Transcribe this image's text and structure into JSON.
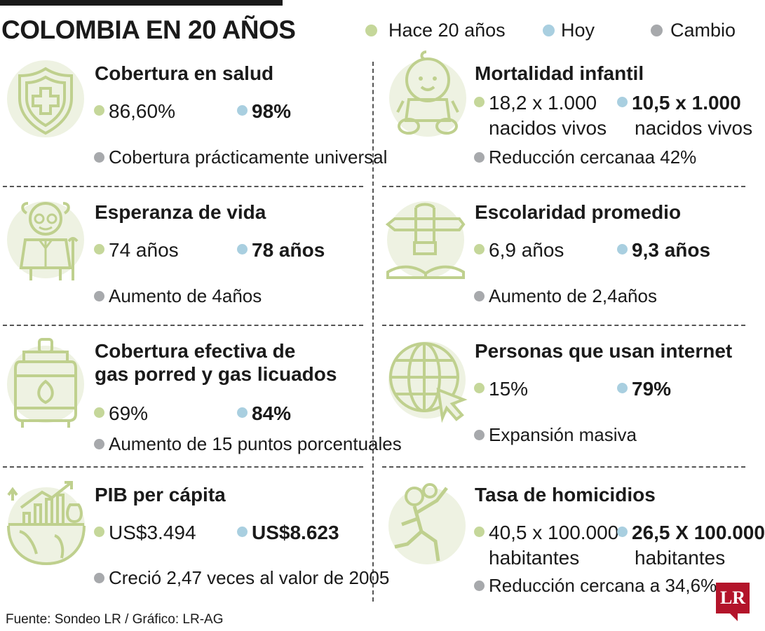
{
  "title": "COLOMBIA EN 20 AÑOS",
  "colors": {
    "before": "#c5d79a",
    "now": "#a9cfe0",
    "change": "#a7a9ac",
    "icon": "#bfd08e",
    "icon_bg": "#eef2e2",
    "brand": "#b3142a"
  },
  "legend": {
    "before": "Hace 20 años",
    "now": "Hoy",
    "change": "Cambio"
  },
  "cards": [
    {
      "icon": "shield-health-icon",
      "title": "Cobertura en salud",
      "before": "86,60%",
      "now": "98%",
      "change": "Cobertura prácticamente universal"
    },
    {
      "icon": "baby-icon",
      "title": "Mortalidad infantil",
      "before": "18,2 x 1.000",
      "before_sub": "nacidos vivos",
      "now": "10,5 x 1.000",
      "now_sub": "nacidos vivos",
      "change": "Reducción cercanaa 42%"
    },
    {
      "icon": "elderly-man-icon",
      "title": "Esperanza de vida",
      "before": "74 años",
      "now": "78 años",
      "change": "Aumento de 4años"
    },
    {
      "icon": "hand-pencil-book-icon",
      "title": "Escolaridad promedio",
      "before": "6,9 años",
      "now": "9,3 años",
      "change": "Aumento de 2,4años"
    },
    {
      "icon": "gas-cylinder-icon",
      "title_line1": "Cobertura efectiva de",
      "title_line2": "gas porred y gas licuados",
      "before": "69%",
      "now": "84%",
      "change": "Aumento de 15 puntos porcentuales"
    },
    {
      "icon": "globe-cursor-icon",
      "title": "Personas que usan internet",
      "before": "15%",
      "now": "79%",
      "change": "Expansión masiva"
    },
    {
      "icon": "world-growth-icon",
      "title": "PIB per cápita",
      "before": "US$3.494",
      "now": "US$8.623",
      "change": "Creció 2,47 veces al valor de 2005"
    },
    {
      "icon": "falling-person-icon",
      "title": "Tasa de homicidios",
      "before": "40,5 x 100.000",
      "before_sub": "habitantes",
      "now": "26,5 X 100.000",
      "now_sub": "habitantes",
      "change": "Reducción cercana a 34,6%"
    }
  ],
  "footer": "Fuente: Sondeo LR / Gráfico: LR-AG",
  "logo": "LR"
}
